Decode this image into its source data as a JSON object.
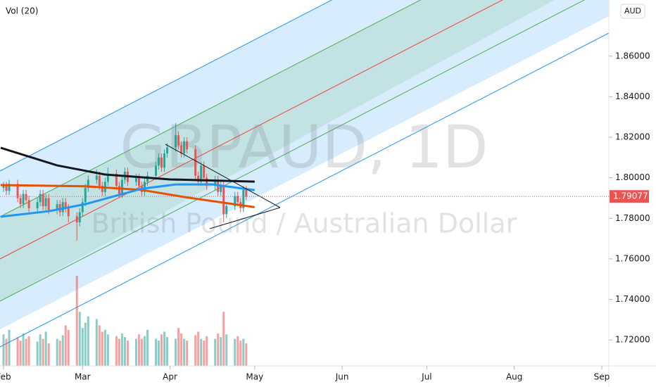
{
  "chart_data": {
    "type": "candlestick",
    "symbol_watermark": "GBPAUD, 1D",
    "description_watermark": "British Pound / Australian Dollar",
    "indicator_label": "Vol (20)",
    "currency": "AUD",
    "xlim": [
      29.75,
      245.5
    ],
    "xticks": [
      {
        "value": 31,
        "label": "Feb"
      },
      {
        "value": 59,
        "label": "Mar"
      },
      {
        "value": 90,
        "label": "Apr"
      },
      {
        "value": 120,
        "label": "May"
      },
      {
        "value": 151,
        "label": "Jun"
      },
      {
        "value": 181,
        "label": "Jul"
      },
      {
        "value": 212,
        "label": "Aug"
      },
      {
        "value": 243,
        "label": "Sep"
      }
    ],
    "ylim": [
      1.7072,
      1.8877
    ],
    "yticks": [
      {
        "value": 1.72,
        "label": "1.72000"
      },
      {
        "value": 1.74,
        "label": "1.74000"
      },
      {
        "value": 1.76,
        "label": "1.76000"
      },
      {
        "value": 1.78,
        "label": "1.78000"
      },
      {
        "value": 1.8,
        "label": "1.80000"
      },
      {
        "value": 1.82,
        "label": "1.82000"
      },
      {
        "value": 1.84,
        "label": "1.84000"
      },
      {
        "value": 1.86,
        "label": "1.86000"
      }
    ],
    "last_price": {
      "value": 1.79077,
      "label": "1.79077"
    },
    "up_color": "#26a69a",
    "down_color": "#ef5350",
    "x": [
      31,
      32,
      33,
      36,
      37,
      38,
      39,
      40,
      43,
      44,
      45,
      46,
      47,
      50,
      51,
      52,
      53,
      54,
      57,
      58,
      59,
      60,
      61,
      64,
      65,
      66,
      67,
      68,
      71,
      72,
      73,
      74,
      75,
      78,
      79,
      80,
      81,
      82,
      85,
      86,
      87,
      88,
      89,
      92,
      93,
      94,
      95,
      96,
      99,
      100,
      101,
      102,
      103,
      106,
      107,
      108,
      109,
      110,
      113,
      114,
      115,
      116,
      117
    ],
    "open": [
      1.795,
      1.796,
      1.7935,
      1.797,
      1.79,
      1.787,
      1.792,
      1.789,
      1.785,
      1.788,
      1.792,
      1.786,
      1.79,
      1.784,
      1.787,
      1.783,
      1.788,
      1.785,
      1.781,
      1.778,
      1.783,
      1.788,
      1.795,
      1.799,
      1.801,
      1.796,
      1.793,
      1.798,
      1.802,
      1.796,
      1.792,
      1.799,
      1.803,
      1.798,
      1.8,
      1.796,
      1.793,
      1.798,
      1.801,
      1.806,
      1.81,
      1.805,
      1.812,
      1.815,
      1.821,
      1.816,
      1.812,
      1.818,
      1.814,
      1.801,
      1.798,
      1.806,
      1.8,
      1.796,
      1.799,
      1.793,
      1.796,
      1.782,
      1.786,
      1.791,
      1.788,
      1.785,
      1.794
    ],
    "high": [
      1.798,
      1.798,
      1.799,
      1.799,
      1.792,
      1.794,
      1.794,
      1.791,
      1.79,
      1.794,
      1.794,
      1.792,
      1.792,
      1.789,
      1.789,
      1.79,
      1.79,
      1.787,
      1.783,
      1.785,
      1.79,
      1.797,
      1.801,
      1.804,
      1.803,
      1.798,
      1.8,
      1.805,
      1.804,
      1.798,
      1.801,
      1.805,
      1.805,
      1.802,
      1.802,
      1.798,
      1.8,
      1.803,
      1.808,
      1.812,
      1.812,
      1.814,
      1.817,
      1.827,
      1.823,
      1.818,
      1.82,
      1.82,
      1.816,
      1.803,
      1.808,
      1.808,
      1.802,
      1.801,
      1.801,
      1.798,
      1.798,
      1.788,
      1.793,
      1.793,
      1.79,
      1.796,
      1.796
    ],
    "low": [
      1.793,
      1.7915,
      1.7915,
      1.788,
      1.785,
      1.785,
      1.787,
      1.783,
      1.783,
      1.786,
      1.784,
      1.784,
      1.782,
      1.782,
      1.781,
      1.781,
      1.783,
      1.778,
      1.769,
      1.776,
      1.781,
      1.786,
      1.793,
      1.797,
      1.794,
      1.791,
      1.791,
      1.796,
      1.794,
      1.79,
      1.79,
      1.797,
      1.796,
      1.796,
      1.794,
      1.791,
      1.791,
      1.796,
      1.799,
      1.804,
      1.803,
      1.803,
      1.81,
      1.813,
      1.814,
      1.81,
      1.81,
      1.812,
      1.799,
      1.796,
      1.796,
      1.798,
      1.794,
      1.794,
      1.791,
      1.791,
      1.778,
      1.78,
      1.784,
      1.786,
      1.783,
      1.783,
      1.789
    ],
    "close": [
      1.796,
      1.7935,
      1.797,
      1.79,
      1.787,
      1.792,
      1.789,
      1.785,
      1.788,
      1.792,
      1.786,
      1.79,
      1.784,
      1.787,
      1.783,
      1.788,
      1.785,
      1.781,
      1.778,
      1.783,
      1.788,
      1.795,
      1.799,
      1.801,
      1.796,
      1.793,
      1.798,
      1.802,
      1.796,
      1.792,
      1.799,
      1.803,
      1.798,
      1.8,
      1.796,
      1.793,
      1.798,
      1.801,
      1.806,
      1.81,
      1.805,
      1.812,
      1.815,
      1.821,
      1.816,
      1.812,
      1.818,
      1.814,
      1.801,
      1.798,
      1.806,
      1.8,
      1.796,
      1.799,
      1.793,
      1.796,
      1.782,
      1.786,
      1.791,
      1.788,
      1.785,
      1.794,
      1.7908
    ],
    "volume": [
      35,
      30,
      40,
      32,
      28,
      36,
      30,
      33,
      27,
      35,
      30,
      38,
      25,
      30,
      28,
      34,
      45,
      40,
      100,
      60,
      42,
      48,
      55,
      52,
      45,
      38,
      40,
      35,
      33,
      30,
      36,
      32,
      28,
      30,
      35,
      30,
      33,
      40,
      30,
      28,
      35,
      38,
      32,
      30,
      42,
      36,
      30,
      28,
      34,
      38,
      30,
      28,
      33,
      30,
      36,
      32,
      60,
      35,
      30,
      33,
      28,
      30,
      25
    ],
    "lines": [
      {
        "color": "#131722",
        "x": [
          30,
          50,
          67,
          90,
          120
        ],
        "values": [
          1.8148,
          1.8061,
          1.8016,
          1.7992,
          1.7981
        ]
      },
      {
        "color": "#e65100",
        "x": [
          30,
          60,
          80,
          95,
          120
        ],
        "values": [
          1.7964,
          1.7958,
          1.794,
          1.7905,
          1.7855
        ]
      },
      {
        "color": "#2196f3",
        "x": [
          30,
          47,
          60,
          80,
          92,
          105,
          120
        ],
        "values": [
          1.7808,
          1.7835,
          1.787,
          1.7946,
          1.7967,
          1.7967,
          1.7939
        ]
      }
    ]
  }
}
